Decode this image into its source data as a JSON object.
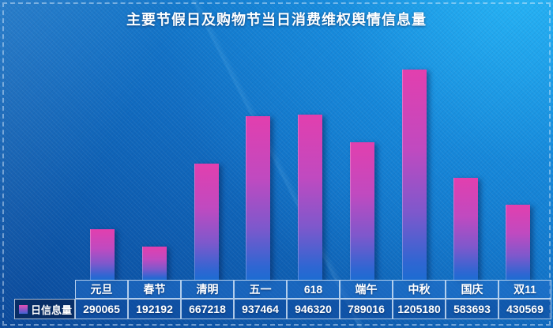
{
  "title": "主要节假日及购物节当日消费维权舆情信息量",
  "chart_data": {
    "type": "bar",
    "title": "主要节假日及购物节当日消费维权舆情信息量",
    "categories": [
      "元旦",
      "春节",
      "清明",
      "五一",
      "618",
      "端午",
      "中秋",
      "国庆",
      "双11"
    ],
    "series": [
      {
        "name": "日信息量",
        "values": [
          290065,
          192192,
          667218,
          937464,
          946320,
          789016,
          1205180,
          583693,
          430569
        ]
      }
    ],
    "xlabel": "",
    "ylabel": "",
    "ylim": [
      0,
      1205180
    ],
    "grid": false,
    "legend_position": "bottom-left",
    "legend_entries": [
      "日信息量"
    ],
    "colors": {
      "bar_gradient_top": "#e23fae",
      "bar_gradient_bottom": "#1d6cd2",
      "background_top_right": "#28b9f8",
      "background_bottom_left": "#0a4899",
      "title_text": "#ffffff",
      "table_text": "#ffffff"
    }
  },
  "legend": {
    "label": "日信息量"
  }
}
